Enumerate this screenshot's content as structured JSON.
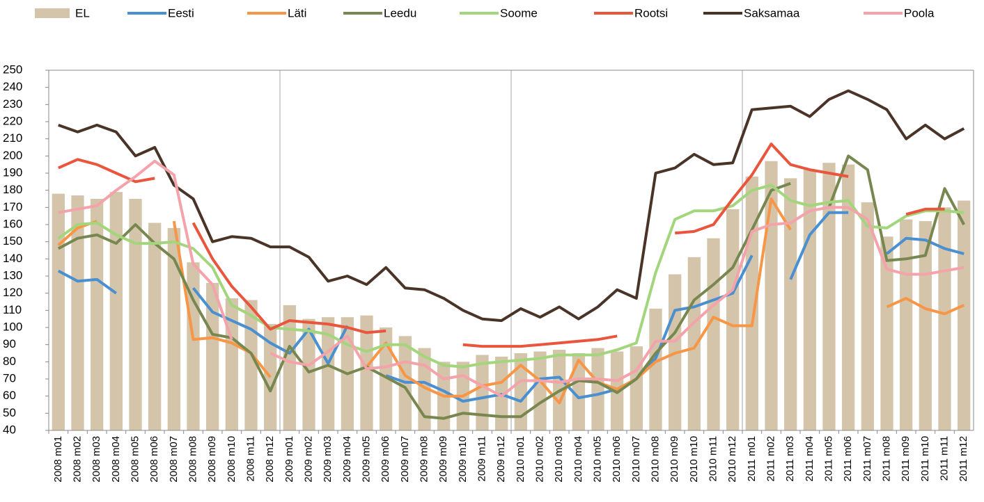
{
  "chart_data": {
    "type": "combo",
    "categories": [
      "2008 m01",
      "2008 m02",
      "2008 m03",
      "2008 m04",
      "2008 m05",
      "2008 m06",
      "2008 m07",
      "2008 m08",
      "2008 m09",
      "2008 m10",
      "2008 m11",
      "2008 m12",
      "2009 m01",
      "2009 m02",
      "2009 m03",
      "2009 m04",
      "2009 m05",
      "2009 m06",
      "2009 m07",
      "2009 m08",
      "2009 m09",
      "2009 m10",
      "2009 m11",
      "2009 m12",
      "2010 m01",
      "2010 m02",
      "2010 m03",
      "2010 m04",
      "2010 m05",
      "2010 m06",
      "2010 m07",
      "2010 m08",
      "2010 m09",
      "2010 m10",
      "2010 m11",
      "2010 m12",
      "2011 m01",
      "2011 m02",
      "2011 m03",
      "2011 m04",
      "2011 m05",
      "2011 m06",
      "2011 m07",
      "2011 m08",
      "2011 m09",
      "2011 m10",
      "2011 m11",
      "2011 m12"
    ],
    "series": [
      {
        "name": "EL",
        "type": "bar",
        "color": "#d3c4aa",
        "values": [
          178,
          177,
          175,
          179,
          175,
          161,
          158,
          138,
          126,
          117,
          116,
          102,
          113,
          105,
          106,
          106,
          107,
          100,
          95,
          88,
          80,
          80,
          84,
          83,
          85,
          86,
          87,
          85,
          88,
          86,
          89,
          111,
          131,
          141,
          152,
          169,
          188,
          197,
          187,
          192,
          196,
          195,
          173,
          153,
          163,
          162,
          170,
          174
        ]
      },
      {
        "name": "Eesti",
        "type": "line",
        "color": "#4a8fd0",
        "values": [
          133,
          127,
          128,
          120,
          null,
          null,
          null,
          123,
          109,
          104,
          99,
          91,
          85,
          99,
          79,
          101,
          null,
          72,
          68,
          68,
          63,
          57,
          59,
          61,
          57,
          70,
          71,
          59,
          61,
          64,
          70,
          82,
          110,
          112,
          116,
          120,
          142,
          null,
          128,
          154,
          167,
          167,
          null,
          143,
          152,
          151,
          146,
          143
        ]
      },
      {
        "name": "Läti",
        "type": "line",
        "color": "#f79646",
        "values": [
          148,
          158,
          162,
          null,
          null,
          null,
          162,
          93,
          94,
          91,
          85,
          71,
          null,
          null,
          null,
          null,
          77,
          91,
          72,
          65,
          60,
          60,
          66,
          68,
          78,
          69,
          56,
          81,
          68,
          64,
          70,
          80,
          85,
          88,
          106,
          101,
          101,
          175,
          157,
          null,
          null,
          null,
          null,
          112,
          117,
          111,
          108,
          113
        ]
      },
      {
        "name": "Leedu",
        "type": "line",
        "color": "#77874f",
        "values": [
          146,
          152,
          154,
          149,
          160,
          149,
          140,
          116,
          96,
          94,
          85,
          63,
          89,
          74,
          78,
          73,
          77,
          71,
          65,
          48,
          47,
          50,
          49,
          48,
          48,
          56,
          63,
          69,
          68,
          62,
          70,
          85,
          97,
          116,
          125,
          135,
          157,
          180,
          184,
          null,
          170,
          200,
          192,
          139,
          140,
          142,
          181,
          160
        ]
      },
      {
        "name": "Soome",
        "type": "line",
        "color": "#a3d67c",
        "values": [
          152,
          160,
          161,
          154,
          149,
          149,
          150,
          146,
          135,
          113,
          107,
          100,
          99,
          98,
          96,
          90,
          86,
          90,
          90,
          83,
          78,
          77,
          79,
          80,
          81,
          82,
          84,
          84,
          84,
          87,
          91,
          132,
          163,
          168,
          168,
          171,
          180,
          183,
          174,
          171,
          173,
          174,
          159,
          158,
          165,
          168,
          168,
          167
        ]
      },
      {
        "name": "Rootsi",
        "type": "line",
        "color": "#e9553d",
        "values": [
          193,
          198,
          195,
          190,
          185,
          187,
          null,
          161,
          140,
          124,
          112,
          99,
          104,
          103,
          102,
          100,
          97,
          98,
          null,
          null,
          null,
          90,
          89,
          89,
          89,
          90,
          91,
          92,
          93,
          95,
          null,
          null,
          155,
          156,
          160,
          175,
          189,
          207,
          195,
          192,
          190,
          188,
          null,
          null,
          166,
          169,
          169,
          null
        ]
      },
      {
        "name": "Saksamaa",
        "type": "line",
        "color": "#4a3428",
        "values": [
          218,
          214,
          218,
          214,
          200,
          205,
          183,
          175,
          150,
          153,
          152,
          147,
          147,
          141,
          127,
          130,
          125,
          135,
          123,
          122,
          117,
          110,
          105,
          104,
          111,
          106,
          112,
          105,
          112,
          122,
          117,
          190,
          193,
          201,
          195,
          196,
          227,
          228,
          229,
          223,
          233,
          238,
          233,
          227,
          210,
          218,
          210,
          216
        ]
      },
      {
        "name": "Poola",
        "type": "line",
        "color": "#f4a3aa",
        "values": [
          167,
          169,
          171,
          180,
          188,
          197,
          189,
          137,
          125,
          93,
          null,
          85,
          80,
          78,
          86,
          95,
          76,
          77,
          80,
          78,
          70,
          72,
          66,
          60,
          69,
          69,
          68,
          70,
          70,
          69,
          75,
          92,
          92,
          103,
          113,
          122,
          156,
          160,
          161,
          168,
          170,
          170,
          163,
          134,
          131,
          131,
          133,
          135
        ]
      }
    ],
    "ylim": [
      40,
      250
    ],
    "yticks": [
      40,
      50,
      60,
      70,
      80,
      90,
      100,
      110,
      120,
      130,
      140,
      150,
      160,
      170,
      180,
      190,
      200,
      210,
      220,
      230,
      240,
      250
    ],
    "legend": "top"
  }
}
